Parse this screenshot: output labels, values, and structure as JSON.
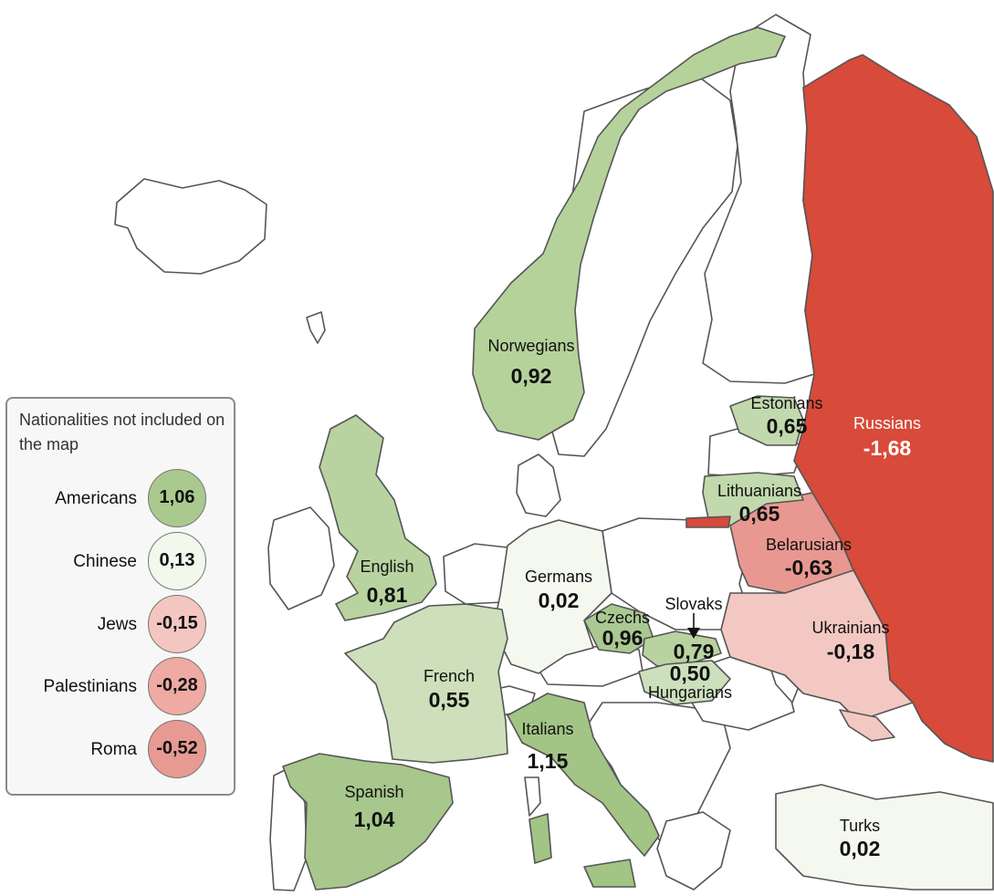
{
  "legend": {
    "title": "Nationalities not included on the map",
    "items": [
      {
        "name": "Americans",
        "value": "1,06",
        "color": "#a9c98e"
      },
      {
        "name": "Chinese",
        "value": "0,13",
        "color": "#f2f8ec"
      },
      {
        "name": "Jews",
        "value": "-0,15",
        "color": "#f4c6c0"
      },
      {
        "name": "Palestinians",
        "value": "-0,28",
        "color": "#eeaaa3"
      },
      {
        "name": "Roma",
        "value": "-0,52",
        "color": "#e79a92"
      }
    ]
  },
  "regions": [
    {
      "name": "Norwegians",
      "value": "0,92",
      "color": "#b5d29b"
    },
    {
      "name": "Estonians",
      "value": "0,65",
      "color": "#c2d9ad"
    },
    {
      "name": "Russians",
      "value": "-1,68",
      "color": "#d84a3a"
    },
    {
      "name": "Lithuanians",
      "value": "0,65",
      "color": "#c2d9ad"
    },
    {
      "name": "Belarusians",
      "value": "-0,63",
      "color": "#e89890"
    },
    {
      "name": "English",
      "value": "0,81",
      "color": "#b8d3a0"
    },
    {
      "name": "Germans",
      "value": "0,02",
      "color": "#f4f8ee"
    },
    {
      "name": "Slovaks",
      "value": "0,79",
      "color": "#b8d3a0"
    },
    {
      "name": "Czechs",
      "value": "0,96",
      "color": "#aac992"
    },
    {
      "name": "Hungarians",
      "value": "0,50",
      "color": "#cde0bd"
    },
    {
      "name": "Ukrainians",
      "value": "-0,18",
      "color": "#f4c8c2"
    },
    {
      "name": "French",
      "value": "0,55",
      "color": "#cde0bb"
    },
    {
      "name": "Italians",
      "value": "1,15",
      "color": "#a2c485"
    },
    {
      "name": "Spanish",
      "value": "1,04",
      "color": "#a7c78c"
    },
    {
      "name": "Turks",
      "value": "0,02",
      "color": "#f4f8ee"
    }
  ],
  "neutral_color": "#ffffff"
}
